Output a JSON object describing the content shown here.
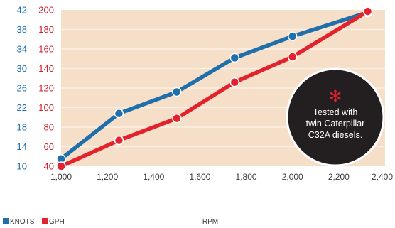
{
  "chart_data": {
    "type": "line",
    "xlabel": "RPM",
    "x": [
      1000,
      1250,
      1500,
      1750,
      2000,
      2325
    ],
    "xlim": [
      1000,
      2400
    ],
    "xticks": [
      "1,000",
      "1,200",
      "1,400",
      "1,600",
      "1,800",
      "2,000",
      "2,200",
      "2,400"
    ],
    "series": [
      {
        "name": "KNOTS",
        "color": "#1f6fad",
        "axis": "left",
        "values": [
          11.5,
          20.8,
          25.2,
          32.2,
          36.6,
          41.5
        ]
      },
      {
        "name": "GPH",
        "color": "#e2232e",
        "axis": "right",
        "values": [
          40,
          66.5,
          89,
          126,
          152,
          198.5
        ]
      }
    ],
    "y_left": {
      "lim": [
        10,
        42
      ],
      "ticks": [
        "10",
        "14",
        "18",
        "22",
        "26",
        "30",
        "34",
        "38",
        "42"
      ]
    },
    "y_right": {
      "lim": [
        40,
        200
      ],
      "ticks": [
        "40",
        "60",
        "80",
        "100",
        "120",
        "140",
        "160",
        "180",
        "200"
      ]
    },
    "grid": "horizontal",
    "legend_position": "bottom-left",
    "annotation": {
      "lines": [
        "Tested with",
        "twin Caterpillar",
        "C32A diesels."
      ],
      "icon": "asterisk-icon",
      "background": "#231f20",
      "icon_color": "#e2232e"
    },
    "plot_background": "#f5dfc8",
    "grid_color": "#fbefe3"
  }
}
